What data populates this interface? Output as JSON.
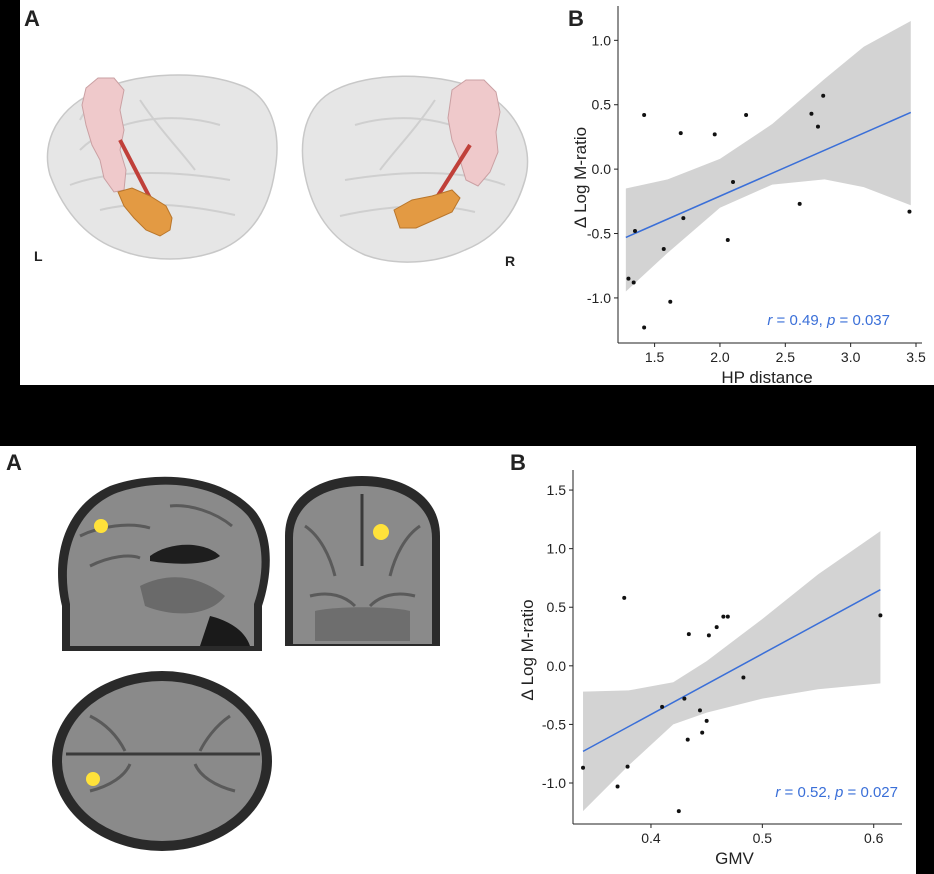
{
  "figure_top": {
    "panel_a_letter": "A",
    "panel_b_letter": "B",
    "left_hemisphere_label": "L",
    "right_hemisphere_label": "R"
  },
  "figure_bottom": {
    "panel_a_letter": "A",
    "panel_b_letter": "B"
  },
  "colors": {
    "regression_line": "#3a6fd8",
    "confidence_band": "#d3d3d3",
    "points": "#111111",
    "stat_text": "#3a6fd8",
    "pink_region": "#efc9cb",
    "orange_region": "#e39a43",
    "tract": "#c0403a",
    "activation": "#ffe23a"
  },
  "chart_data": [
    {
      "type": "scatter",
      "xlabel": "HP distance",
      "ylabel": "Δ Log M-ratio",
      "xlim": [
        1.22,
        3.5
      ],
      "ylim": [
        -1.35,
        1.22
      ],
      "xticks": [
        1.5,
        2.0,
        2.5,
        3.0,
        3.5
      ],
      "xtick_labels": [
        "1.5",
        "2.0",
        "2.5",
        "3.0",
        "3.5"
      ],
      "yticks": [
        -1.0,
        -0.5,
        0.0,
        0.5,
        1.0
      ],
      "ytick_labels": [
        "-1.0",
        "-0.5",
        "0.0",
        "0.5",
        "1.0"
      ],
      "annotation": {
        "r_label": "r",
        "r_value": " = 0.49, ",
        "p_label": "p",
        "p_value": " = 0.037"
      },
      "points": [
        {
          "x": 1.3,
          "y": -0.85
        },
        {
          "x": 1.34,
          "y": -0.88
        },
        {
          "x": 1.35,
          "y": -0.48
        },
        {
          "x": 1.42,
          "y": 0.42
        },
        {
          "x": 1.42,
          "y": -1.23
        },
        {
          "x": 1.57,
          "y": -0.62
        },
        {
          "x": 1.62,
          "y": -1.03
        },
        {
          "x": 1.7,
          "y": 0.28
        },
        {
          "x": 1.72,
          "y": -0.38
        },
        {
          "x": 1.96,
          "y": 0.27
        },
        {
          "x": 2.06,
          "y": -0.55
        },
        {
          "x": 2.1,
          "y": -0.1
        },
        {
          "x": 2.2,
          "y": 0.42
        },
        {
          "x": 2.61,
          "y": -0.27
        },
        {
          "x": 2.7,
          "y": 0.43
        },
        {
          "x": 2.75,
          "y": 0.33
        },
        {
          "x": 2.79,
          "y": 0.57
        },
        {
          "x": 3.45,
          "y": -0.33
        }
      ],
      "fit_line": {
        "x": [
          1.28,
          3.46
        ],
        "y": [
          -0.53,
          0.44
        ]
      },
      "ci_upper": [
        [
          1.28,
          -0.15
        ],
        [
          1.6,
          -0.08
        ],
        [
          2.0,
          0.08
        ],
        [
          2.4,
          0.35
        ],
        [
          2.8,
          0.7
        ],
        [
          3.1,
          0.95
        ],
        [
          3.46,
          1.15
        ]
      ],
      "ci_lower": [
        [
          1.28,
          -0.95
        ],
        [
          1.6,
          -0.65
        ],
        [
          2.0,
          -0.3
        ],
        [
          2.4,
          -0.12
        ],
        [
          2.8,
          -0.08
        ],
        [
          3.1,
          -0.14
        ],
        [
          3.46,
          -0.28
        ]
      ]
    },
    {
      "type": "scatter",
      "xlabel": "GMV",
      "ylabel": "Δ Log M-ratio",
      "xlim": [
        0.33,
        0.62
      ],
      "ylim": [
        -1.35,
        1.62
      ],
      "xticks": [
        0.4,
        0.5,
        0.6
      ],
      "xtick_labels": [
        "0.4",
        "0.5",
        "0.6"
      ],
      "yticks": [
        -1.0,
        -0.5,
        0.0,
        0.5,
        1.0,
        1.5
      ],
      "ytick_labels": [
        "-1.0",
        "-0.5",
        "0.0",
        "0.5",
        "1.0",
        "1.5"
      ],
      "annotation": {
        "r_label": "r",
        "r_value": " = 0.52, ",
        "p_label": "p",
        "p_value": " = 0.027"
      },
      "points": [
        {
          "x": 0.339,
          "y": -0.87
        },
        {
          "x": 0.37,
          "y": -1.03
        },
        {
          "x": 0.376,
          "y": 0.58
        },
        {
          "x": 0.379,
          "y": -0.86
        },
        {
          "x": 0.41,
          "y": -0.35
        },
        {
          "x": 0.425,
          "y": -1.24
        },
        {
          "x": 0.43,
          "y": -0.28
        },
        {
          "x": 0.433,
          "y": -0.63
        },
        {
          "x": 0.434,
          "y": 0.27
        },
        {
          "x": 0.444,
          "y": -0.38
        },
        {
          "x": 0.446,
          "y": -0.57
        },
        {
          "x": 0.45,
          "y": -0.47
        },
        {
          "x": 0.452,
          "y": 0.26
        },
        {
          "x": 0.459,
          "y": 0.33
        },
        {
          "x": 0.465,
          "y": 0.42
        },
        {
          "x": 0.469,
          "y": 0.42
        },
        {
          "x": 0.483,
          "y": -0.1
        },
        {
          "x": 0.606,
          "y": 0.43
        }
      ],
      "fit_line": {
        "x": [
          0.339,
          0.606
        ],
        "y": [
          -0.73,
          0.65
        ]
      },
      "ci_upper": [
        [
          0.339,
          -0.22
        ],
        [
          0.38,
          -0.21
        ],
        [
          0.42,
          -0.14
        ],
        [
          0.45,
          0.04
        ],
        [
          0.5,
          0.4
        ],
        [
          0.55,
          0.78
        ],
        [
          0.606,
          1.15
        ]
      ],
      "ci_lower": [
        [
          0.339,
          -1.24
        ],
        [
          0.38,
          -0.85
        ],
        [
          0.42,
          -0.5
        ],
        [
          0.45,
          -0.4
        ],
        [
          0.5,
          -0.28
        ],
        [
          0.55,
          -0.2
        ],
        [
          0.606,
          -0.15
        ]
      ]
    }
  ]
}
